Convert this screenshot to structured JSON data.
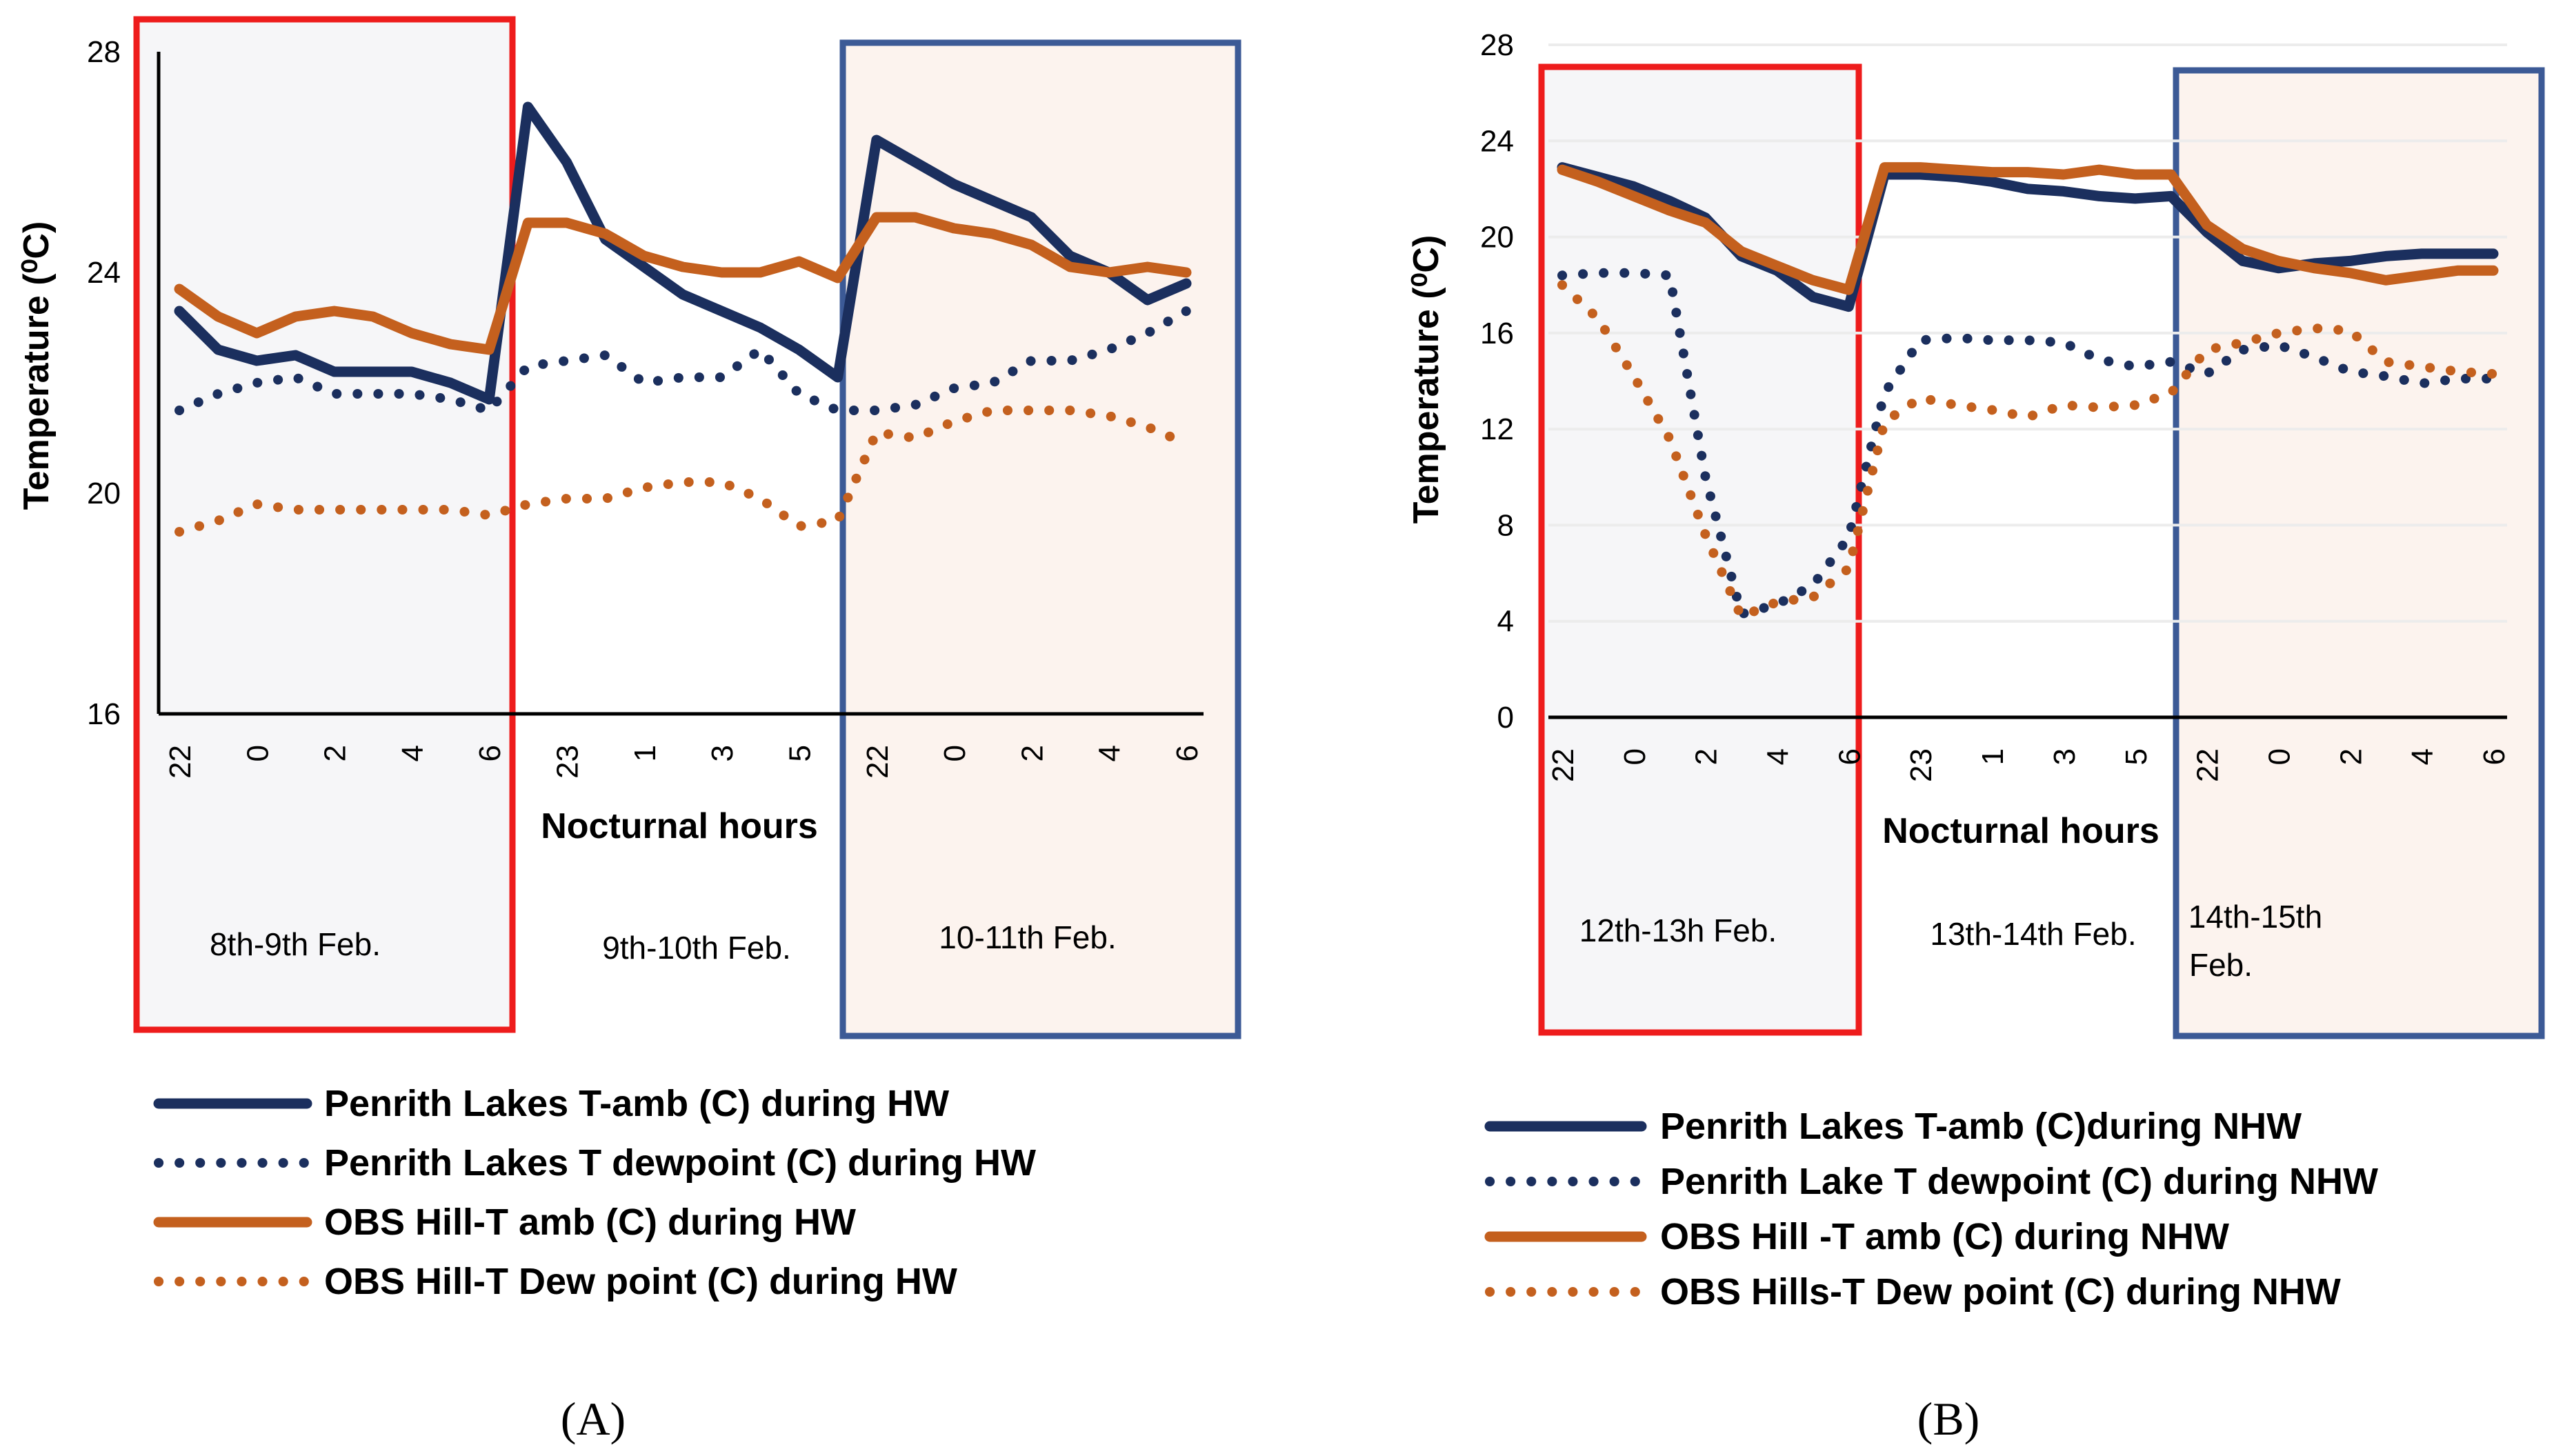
{
  "chart_data": [
    {
      "type": "line",
      "panel_label": "(A)",
      "ylabel": "Temperature (⁰C)",
      "xlabel": "Nocturnal hours",
      "ylim": [
        16,
        28
      ],
      "yticks": [
        "16",
        "20",
        "24",
        "28"
      ],
      "categories": [
        "22",
        "23",
        "0",
        "1",
        "2",
        "3",
        "4",
        "5",
        "6",
        "22",
        "23",
        "0",
        "1",
        "2",
        "3",
        "4",
        "5",
        "6",
        "22",
        "23",
        "0",
        "1",
        "2",
        "3",
        "4",
        "5",
        "6"
      ],
      "xtick_labels": [
        {
          "index": 0,
          "label": "22"
        },
        {
          "index": 2,
          "label": "0"
        },
        {
          "index": 4,
          "label": "2"
        },
        {
          "index": 6,
          "label": "4"
        },
        {
          "index": 8,
          "label": "6"
        },
        {
          "index": 10,
          "label": "23"
        },
        {
          "index": 12,
          "label": "1"
        },
        {
          "index": 14,
          "label": "3"
        },
        {
          "index": 16,
          "label": "5"
        },
        {
          "index": 18,
          "label": "22"
        },
        {
          "index": 20,
          "label": "0"
        },
        {
          "index": 22,
          "label": "2"
        },
        {
          "index": 24,
          "label": "4"
        },
        {
          "index": 26,
          "label": "6"
        }
      ],
      "periods": [
        {
          "label": "8th-9th Feb.",
          "start": 0,
          "end": 8,
          "highlight": "heatwave",
          "border": "#ee1c1c",
          "fill": "#f6f6f8"
        },
        {
          "label": "9th-10th Feb.",
          "start": 9,
          "end": 17,
          "highlight": "none",
          "border": "",
          "fill": ""
        },
        {
          "label": "10-11th Feb.",
          "start": 18,
          "end": 26,
          "highlight": "post",
          "border": "#3c5a96",
          "fill": "#fcf3ee"
        }
      ],
      "series": [
        {
          "name": "Penrith Lakes T-amb (C) during HW",
          "color": "#1b2f5e",
          "style": "solid",
          "values": [
            23.3,
            22.6,
            22.4,
            22.5,
            22.2,
            22.2,
            22.2,
            22.0,
            21.7,
            27.0,
            26.0,
            24.6,
            24.1,
            23.6,
            23.3,
            23.0,
            22.6,
            22.1,
            26.4,
            26.0,
            25.6,
            25.3,
            25.0,
            24.3,
            24.0,
            23.5,
            23.8
          ]
        },
        {
          "name": "Penrith Lakes T dewpoint (C) during HW",
          "color": "#1b2f5e",
          "style": "dotted",
          "values": [
            21.5,
            21.8,
            22.0,
            22.1,
            21.8,
            21.8,
            21.8,
            21.7,
            21.5,
            22.3,
            22.4,
            22.5,
            22.0,
            22.1,
            22.1,
            22.6,
            21.8,
            21.5,
            21.5,
            21.6,
            21.9,
            22.0,
            22.4,
            22.4,
            22.6,
            22.9,
            23.3
          ]
        },
        {
          "name": "OBS Hill-T amb (C) during HW",
          "color": "#c4601e",
          "style": "solid",
          "values": [
            23.7,
            23.2,
            22.9,
            23.2,
            23.3,
            23.2,
            22.9,
            22.7,
            22.6,
            24.9,
            24.9,
            24.7,
            24.3,
            24.1,
            24.0,
            24.0,
            24.2,
            23.9,
            25.0,
            25.0,
            24.8,
            24.7,
            24.5,
            24.1,
            24.0,
            24.1,
            24.0
          ]
        },
        {
          "name": "OBS Hill-T Dew point (C) during HW",
          "color": "#c4601e",
          "style": "dotted",
          "values": [
            19.3,
            19.5,
            19.8,
            19.7,
            19.7,
            19.7,
            19.7,
            19.7,
            19.6,
            19.8,
            19.9,
            19.9,
            20.1,
            20.2,
            20.2,
            19.9,
            19.4,
            19.5,
            21.1,
            21.0,
            21.3,
            21.5,
            21.5,
            21.5,
            21.4,
            21.2,
            20.9
          ]
        }
      ]
    },
    {
      "type": "line",
      "panel_label": "(B)",
      "ylabel": "Temperature (⁰C)",
      "xlabel": "Nocturnal hours",
      "ylim": [
        0,
        28
      ],
      "yticks": [
        "0",
        "4",
        "8",
        "12",
        "16",
        "20",
        "24",
        "28"
      ],
      "categories": [
        "22",
        "23",
        "0",
        "1",
        "2",
        "3",
        "4",
        "5",
        "6",
        "22",
        "23",
        "0",
        "1",
        "2",
        "3",
        "4",
        "5",
        "6",
        "22",
        "23",
        "0",
        "1",
        "2",
        "3",
        "4",
        "5",
        "6"
      ],
      "xtick_labels": [
        {
          "index": 0,
          "label": "22"
        },
        {
          "index": 2,
          "label": "0"
        },
        {
          "index": 4,
          "label": "2"
        },
        {
          "index": 6,
          "label": "4"
        },
        {
          "index": 8,
          "label": "6"
        },
        {
          "index": 10,
          "label": "23"
        },
        {
          "index": 12,
          "label": "1"
        },
        {
          "index": 14,
          "label": "3"
        },
        {
          "index": 16,
          "label": "5"
        },
        {
          "index": 18,
          "label": "22"
        },
        {
          "index": 20,
          "label": "0"
        },
        {
          "index": 22,
          "label": "2"
        },
        {
          "index": 24,
          "label": "4"
        },
        {
          "index": 26,
          "label": "6"
        }
      ],
      "periods": [
        {
          "label": "12th-13h Feb.",
          "start": 0,
          "end": 8,
          "highlight": "heatwave",
          "border": "#ee1c1c",
          "fill": "#f6f6f8"
        },
        {
          "label": "13th-14th Feb.",
          "start": 9,
          "end": 17,
          "highlight": "none",
          "border": "",
          "fill": ""
        },
        {
          "label": "14th-15th Feb.",
          "start": 18,
          "end": 26,
          "highlight": "post",
          "border": "#3c5a96",
          "fill": "#fcf3ee"
        }
      ],
      "series": [
        {
          "name": "Penrith Lakes T-amb (C)during NHW",
          "color": "#1b2f5e",
          "style": "solid",
          "values": [
            22.9,
            22.5,
            22.1,
            21.5,
            20.8,
            19.2,
            18.6,
            17.5,
            17.1,
            22.6,
            22.6,
            22.5,
            22.3,
            22.0,
            21.9,
            21.7,
            21.6,
            21.7,
            20.2,
            19.0,
            18.7,
            18.9,
            19.0,
            19.2,
            19.3,
            19.3,
            19.3
          ]
        },
        {
          "name": "Penrith Lake T dewpoint (C) during NHW",
          "color": "#1b2f5e",
          "style": "dotted",
          "values": [
            18.4,
            18.5,
            18.5,
            18.4,
            10.0,
            4.3,
            4.7,
            5.5,
            7.5,
            13.5,
            15.7,
            15.8,
            15.7,
            15.7,
            15.6,
            14.9,
            14.6,
            14.8,
            14.3,
            15.3,
            15.5,
            15.0,
            14.4,
            14.2,
            13.9,
            14.1,
            14.1
          ]
        },
        {
          "name": "OBS Hill -T amb (C) during NHW",
          "color": "#c4601e",
          "style": "solid",
          "values": [
            22.8,
            22.3,
            21.7,
            21.1,
            20.6,
            19.4,
            18.8,
            18.2,
            17.8,
            22.9,
            22.9,
            22.8,
            22.7,
            22.7,
            22.6,
            22.8,
            22.6,
            22.6,
            20.5,
            19.5,
            19.0,
            18.7,
            18.5,
            18.2,
            18.4,
            18.6,
            18.6
          ]
        },
        {
          "name": "OBS Hills-T Dew point (C) during NHW",
          "color": "#c4601e",
          "style": "dotted",
          "values": [
            18.0,
            16.6,
            14.2,
            11.6,
            7.6,
            4.2,
            4.8,
            5.0,
            6.2,
            12.3,
            13.3,
            13.0,
            12.8,
            12.5,
            13.0,
            12.9,
            13.0,
            13.5,
            15.3,
            15.6,
            16.0,
            16.2,
            16.1,
            14.8,
            14.6,
            14.4,
            14.3
          ]
        }
      ]
    }
  ]
}
